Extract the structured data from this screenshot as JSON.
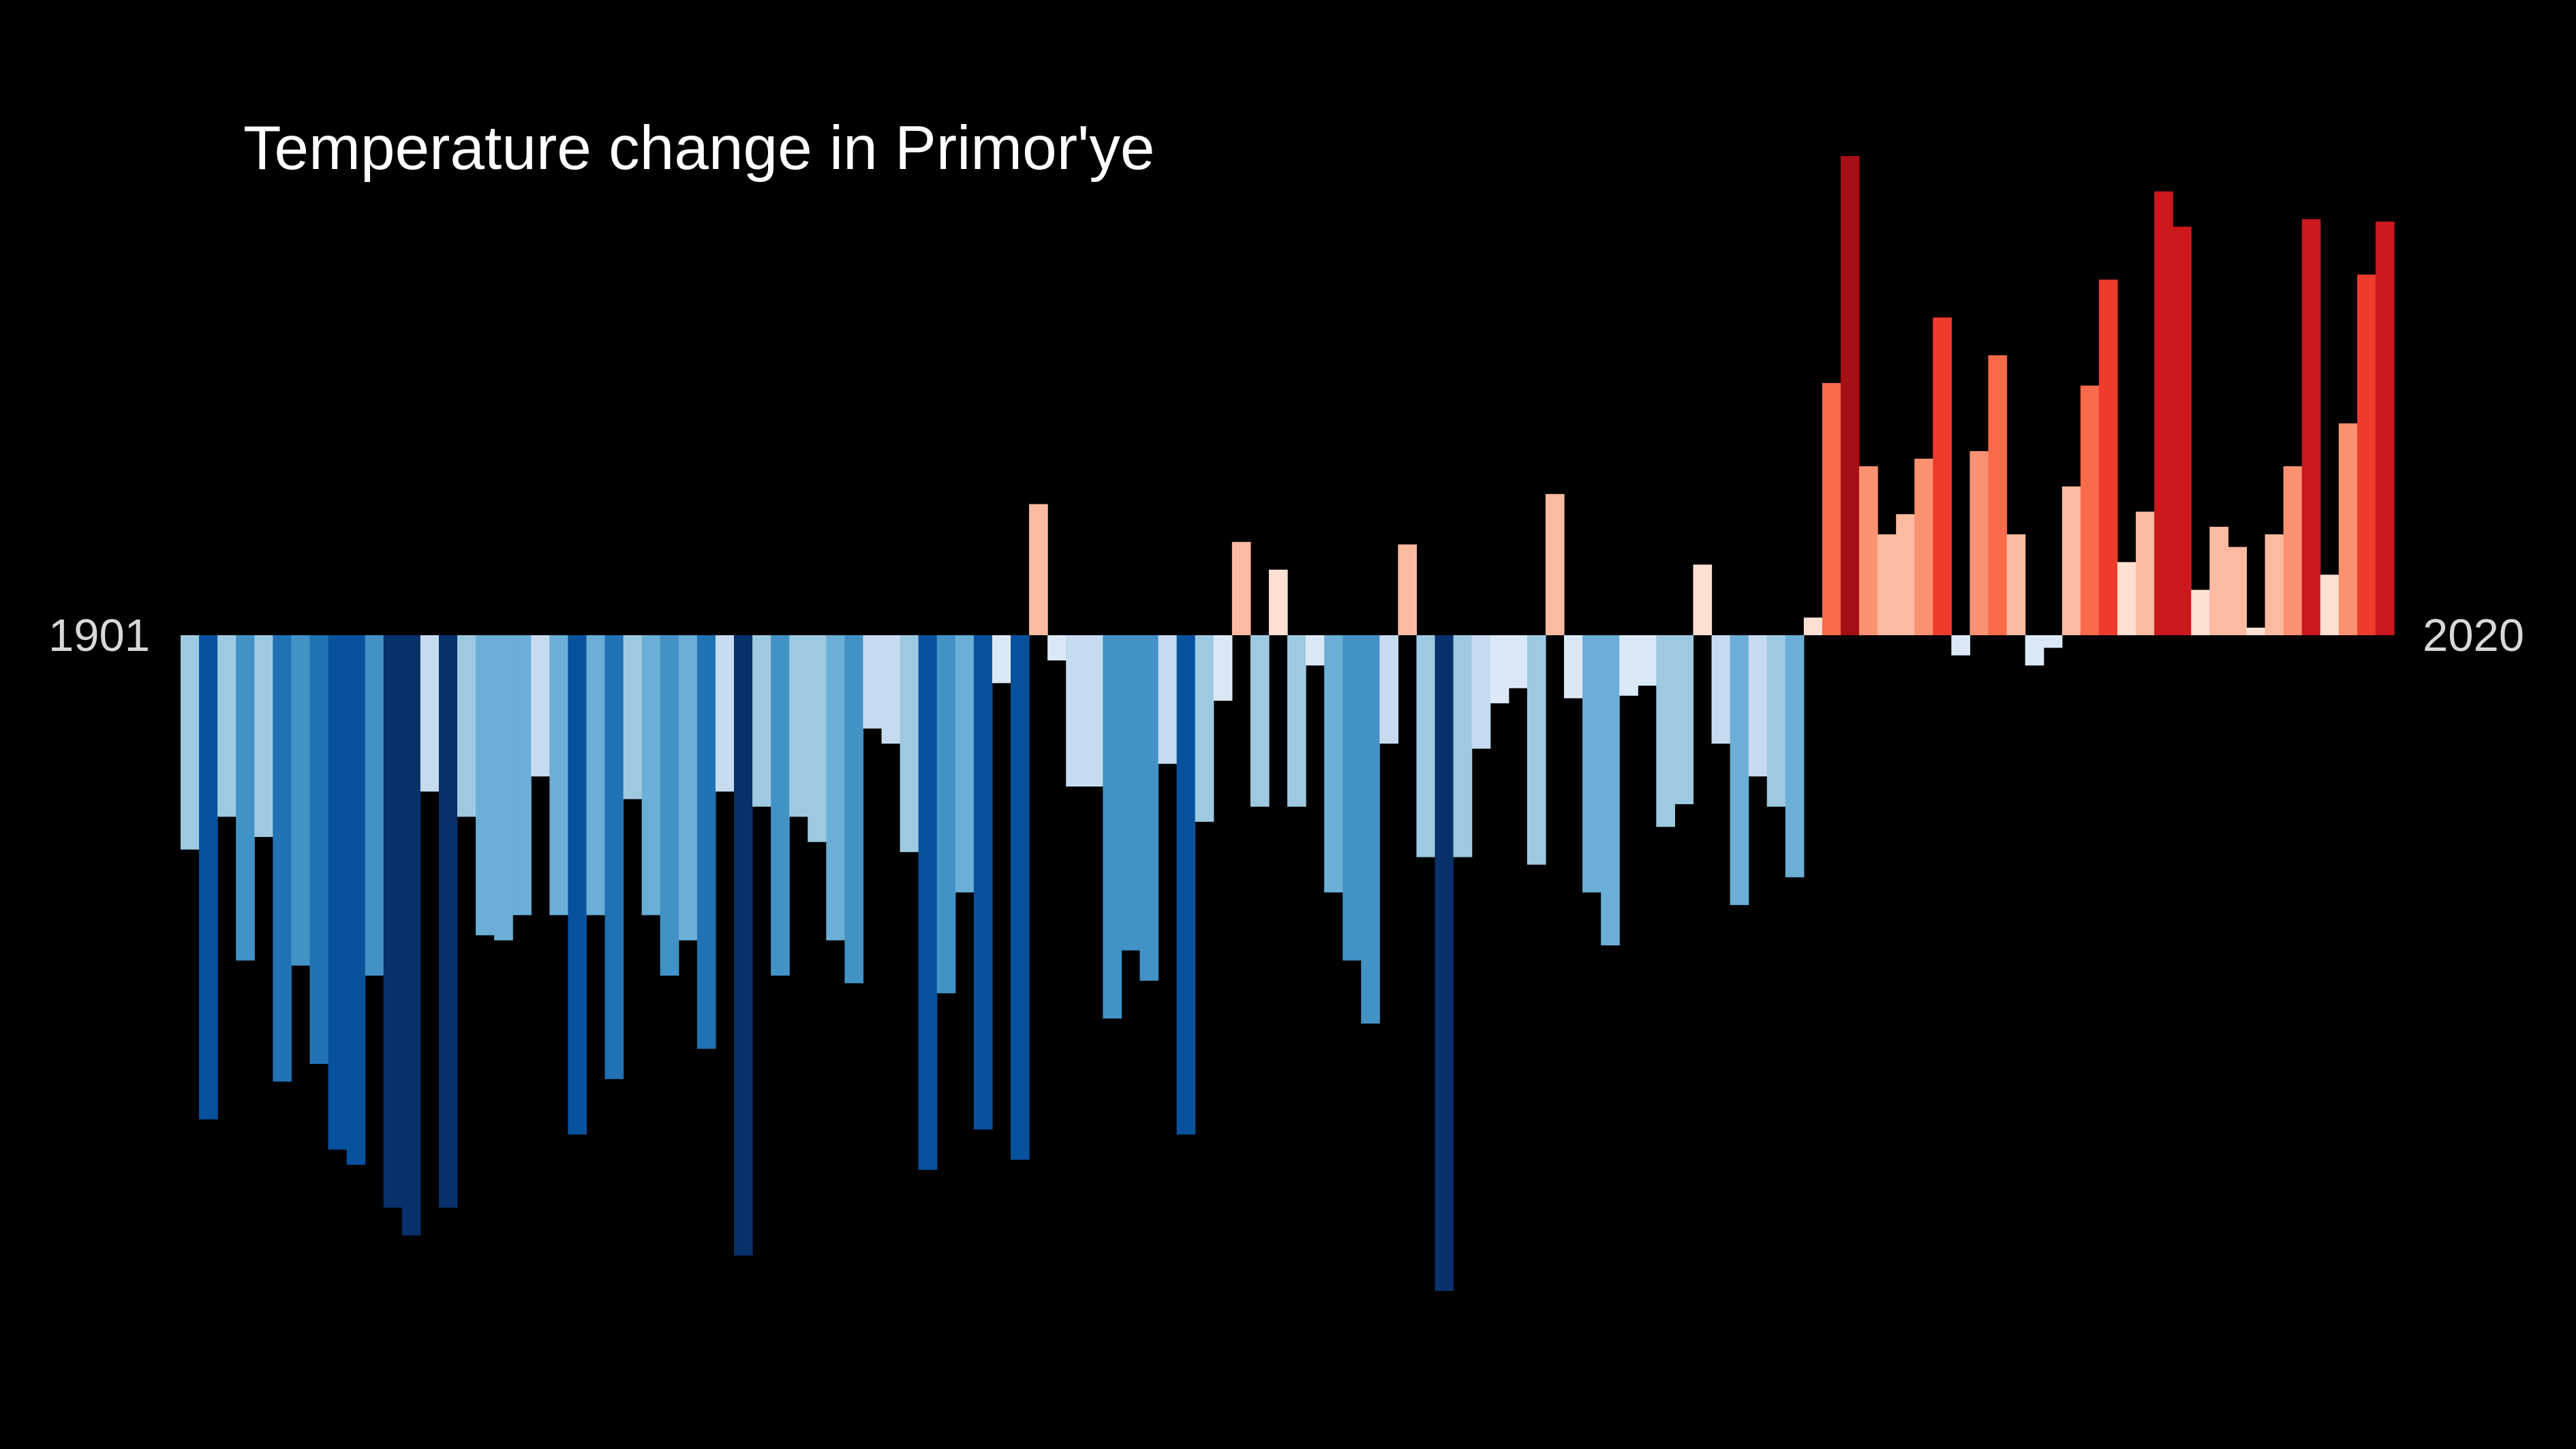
{
  "chart_data": {
    "type": "bar",
    "title": "Temperature change in Primor'ye",
    "start_year": "1901",
    "end_year": "2020",
    "xlabel": "",
    "ylabel": "",
    "grid": false,
    "legend": "none",
    "ylim": [
      -2.6,
      2.0
    ],
    "colors": {
      "background": "#000000",
      "text": "#ffffff",
      "year_labels": "#d8d8d8"
    },
    "values": [
      -0.85,
      -1.92,
      -0.72,
      -1.29,
      -0.8,
      -1.77,
      -1.31,
      -1.7,
      -2.04,
      -2.1,
      -1.35,
      -2.27,
      -2.38,
      -0.62,
      -2.27,
      -0.72,
      -1.19,
      -1.21,
      -1.11,
      -0.56,
      -1.11,
      -1.98,
      -1.11,
      -1.76,
      -0.65,
      -1.11,
      -1.35,
      -1.21,
      -1.64,
      -0.62,
      -2.46,
      -0.68,
      -1.35,
      -0.72,
      -0.82,
      -1.21,
      -1.38,
      -0.37,
      -0.43,
      -0.86,
      -2.12,
      -1.42,
      -1.02,
      -1.96,
      -0.19,
      -2.08,
      0.52,
      -0.1,
      -0.6,
      -0.6,
      -1.52,
      -1.25,
      -1.37,
      -0.51,
      -1.98,
      -0.74,
      -0.26,
      0.37,
      -0.68,
      0.26,
      -0.68,
      -0.12,
      -1.02,
      -1.29,
      -1.54,
      -0.43,
      0.36,
      -0.88,
      -2.6,
      -0.88,
      -0.45,
      -0.27,
      -0.21,
      -0.91,
      0.56,
      -0.25,
      -1.02,
      -1.23,
      -0.24,
      -0.2,
      -0.76,
      -0.67,
      0.28,
      -0.43,
      -1.07,
      -0.56,
      -0.68,
      -0.96,
      0.07,
      1.0,
      1.9,
      0.67,
      0.4,
      0.48,
      0.7,
      1.26,
      -0.08,
      0.73,
      1.11,
      0.4,
      -0.12,
      -0.05,
      0.59,
      0.99,
      1.41,
      0.29,
      0.49,
      1.76,
      1.62,
      0.18,
      0.43,
      0.35,
      0.03,
      0.4,
      0.67,
      1.65,
      0.24,
      0.84,
      1.43,
      1.64
    ]
  }
}
